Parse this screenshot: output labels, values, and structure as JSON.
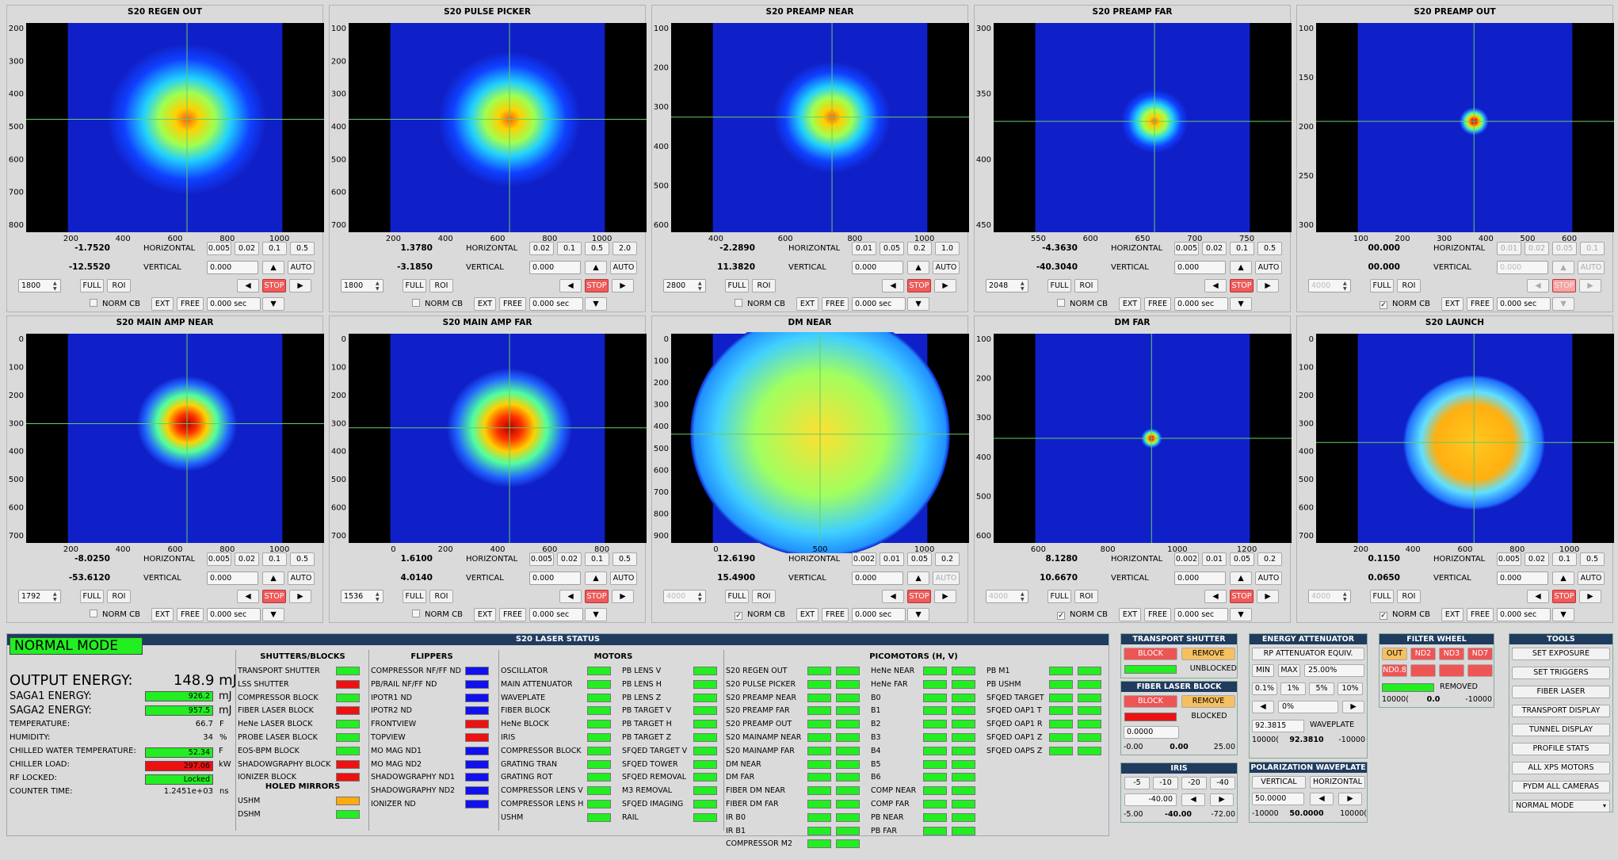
{
  "cameras": [
    {
      "title": "S20 REGEN OUT",
      "colormap": "jet",
      "yticks": [
        "200",
        "300",
        "400",
        "500",
        "600",
        "700",
        "800"
      ],
      "xticks": [
        "200",
        "400",
        "600",
        "800",
        "1000"
      ],
      "beam": {
        "cx": 0.54,
        "cy": 0.46,
        "r": 0.38,
        "peak": "yellow"
      },
      "h_value": "-1.7520",
      "v_value": "-12.5520",
      "h_label": "HORIZONTAL",
      "v_label": "VERTICAL",
      "h_steps": [
        "0.005",
        "0.02",
        "0.1",
        "0.5"
      ],
      "v_input": "0.000",
      "auto": "AUTO",
      "exposure": "1800",
      "full": "FULL",
      "roi": "ROI",
      "stop": "STOP",
      "norm_cb": "NORM CB",
      "norm_checked": false,
      "ext": "EXT",
      "free": "FREE",
      "time": "0.000 sec",
      "disabled": false
    },
    {
      "title": "S20 PULSE PICKER",
      "yticks": [
        "100",
        "200",
        "300",
        "400",
        "500",
        "600",
        "700"
      ],
      "xticks": [
        "200",
        "400",
        "600",
        "800",
        "1000"
      ],
      "beam": {
        "cx": 0.54,
        "cy": 0.46,
        "r": 0.34,
        "peak": "yellow"
      },
      "h_value": "1.3780",
      "v_value": "-3.1850",
      "h_label": "HORIZONTAL",
      "v_label": "VERTICAL",
      "h_steps": [
        "0.02",
        "0.1",
        "0.5",
        "2.0"
      ],
      "v_input": "0.000",
      "auto": "AUTO",
      "exposure": "1800",
      "full": "FULL",
      "roi": "ROI",
      "stop": "STOP",
      "norm_cb": "NORM CB",
      "norm_checked": false,
      "ext": "EXT",
      "free": "FREE",
      "time": "0.000 sec",
      "disabled": false
    },
    {
      "title": "S20 PREAMP NEAR",
      "yticks": [
        "100",
        "200",
        "300",
        "400",
        "500",
        "600"
      ],
      "xticks": [
        "400",
        "600",
        "800",
        "1000"
      ],
      "beam": {
        "cx": 0.54,
        "cy": 0.45,
        "r": 0.28,
        "peak": "yellow"
      },
      "h_value": "-2.2890",
      "v_value": "11.3820",
      "h_label": "HORIZONTAL",
      "v_label": "VERTICAL",
      "h_steps": [
        "0.01",
        "0.05",
        "0.2",
        "1.0"
      ],
      "v_input": "0.000",
      "auto": "AUTO",
      "exposure": "2800",
      "full": "FULL",
      "roi": "ROI",
      "stop": "STOP",
      "norm_cb": "NORM CB",
      "norm_checked": false,
      "ext": "EXT",
      "free": "FREE",
      "time": "0.000 sec",
      "disabled": false
    },
    {
      "title": "S20 PREAMP FAR",
      "yticks": [
        "300",
        "350",
        "400",
        "450"
      ],
      "xticks": [
        "550",
        "600",
        "650",
        "700",
        "750"
      ],
      "beam": {
        "cx": 0.54,
        "cy": 0.47,
        "r": 0.16,
        "peak": "yellow"
      },
      "h_value": "-4.3630",
      "v_value": "-40.3040",
      "h_label": "HORIZONTAL",
      "v_label": "VERTICAL",
      "h_steps": [
        "0.005",
        "0.02",
        "0.1",
        "0.5"
      ],
      "v_input": "0.000",
      "auto": "AUTO",
      "exposure": "2048",
      "full": "FULL",
      "roi": "ROI",
      "stop": "STOP",
      "norm_cb": "NORM CB",
      "norm_checked": false,
      "ext": "EXT",
      "free": "FREE",
      "time": "0.000 sec",
      "disabled": false
    },
    {
      "title": "S20 PREAMP OUT",
      "yticks": [
        "100",
        "150",
        "200",
        "250",
        "300"
      ],
      "xticks": [
        "100",
        "200",
        "300",
        "400",
        "500",
        "600"
      ],
      "beam": {
        "cx": 0.53,
        "cy": 0.47,
        "r": 0.07,
        "peak": "red"
      },
      "h_value": "00.000",
      "v_value": "00.000",
      "h_label": "HORIZONTAL",
      "v_label": "VERTICAL",
      "h_steps": [
        "0.01",
        "0.02",
        "0.05",
        "0.1"
      ],
      "v_input": "0.000",
      "auto": "AUTO",
      "exposure": "4000",
      "full": "FULL",
      "roi": "ROI",
      "stop": "STOP",
      "norm_cb": "NORM CB",
      "norm_checked": true,
      "ext": "EXT",
      "free": "FREE",
      "time": "0.000 sec",
      "disabled": true
    },
    {
      "title": "S20 MAIN AMP NEAR",
      "yticks": [
        "0",
        "100",
        "200",
        "300",
        "400",
        "500",
        "600",
        "700"
      ],
      "xticks": [
        "200",
        "400",
        "600",
        "800",
        "1000"
      ],
      "beam": {
        "cx": 0.54,
        "cy": 0.43,
        "r": 0.24,
        "peak": "red"
      },
      "h_value": "-8.0250",
      "v_value": "-53.6120",
      "h_label": "HORIZONTAL",
      "v_label": "VERTICAL",
      "h_steps": [
        "0.005",
        "0.02",
        "0.1",
        "0.5"
      ],
      "v_input": "0.000",
      "auto": "AUTO",
      "exposure": "1792",
      "full": "FULL",
      "roi": "ROI",
      "stop": "STOP",
      "norm_cb": "NORM CB",
      "norm_checked": false,
      "ext": "EXT",
      "free": "FREE",
      "time": "0.000 sec",
      "disabled": false
    },
    {
      "title": "S20 MAIN AMP FAR",
      "yticks": [
        "0",
        "100",
        "200",
        "300",
        "400",
        "500",
        "600",
        "700"
      ],
      "xticks": [
        "0",
        "200",
        "400",
        "600",
        "800"
      ],
      "beam": {
        "cx": 0.54,
        "cy": 0.45,
        "r": 0.3,
        "peak": "red"
      },
      "h_value": "1.6100",
      "v_value": "4.0140",
      "h_label": "HORIZONTAL",
      "v_label": "VERTICAL",
      "h_steps": [
        "0.005",
        "0.02",
        "0.1",
        "0.5"
      ],
      "v_input": "0.000",
      "auto": "AUTO",
      "exposure": "1536",
      "full": "FULL",
      "roi": "ROI",
      "stop": "STOP",
      "norm_cb": "NORM CB",
      "norm_checked": false,
      "ext": "EXT",
      "free": "FREE",
      "time": "0.000 sec",
      "disabled": false
    },
    {
      "title": "DM NEAR",
      "yticks": [
        "0",
        "100",
        "200",
        "300",
        "400",
        "500",
        "600",
        "700",
        "800",
        "900"
      ],
      "xticks": [
        "0",
        "500",
        "1000"
      ],
      "beam": {
        "cx": 0.5,
        "cy": 0.48,
        "r": 0.62,
        "peak": "flat"
      },
      "h_value": "12.6190",
      "v_value": "15.4900",
      "h_label": "HORIZONTAL",
      "v_label": "VERTICAL",
      "h_steps": [
        "0.002",
        "0.01",
        "0.05",
        "0.2"
      ],
      "v_input": "0.000",
      "auto": "AUTO",
      "exposure": "4000",
      "full": "FULL",
      "roi": "ROI",
      "stop": "STOP",
      "norm_cb": "NORM CB",
      "norm_checked": true,
      "ext": "EXT",
      "free": "FREE",
      "time": "0.000 sec",
      "disabled": false,
      "auto_disabled": true,
      "exposure_disabled": true
    },
    {
      "title": "DM FAR",
      "yticks": [
        "100",
        "200",
        "300",
        "400",
        "500",
        "600"
      ],
      "xticks": [
        "600",
        "800",
        "1000",
        "1200"
      ],
      "beam": {
        "cx": 0.53,
        "cy": 0.5,
        "r": 0.05,
        "peak": "red"
      },
      "h_value": "8.1280",
      "v_value": "10.6670",
      "h_label": "HORIZONTAL",
      "v_label": "VERTICAL",
      "h_steps": [
        "0.002",
        "0.01",
        "0.05",
        "0.2"
      ],
      "v_input": "0.000",
      "auto": "AUTO",
      "exposure": "4000",
      "full": "FULL",
      "roi": "ROI",
      "stop": "STOP",
      "norm_cb": "NORM CB",
      "norm_checked": true,
      "ext": "EXT",
      "free": "FREE",
      "time": "0.000 sec",
      "disabled": false,
      "exposure_disabled": true
    },
    {
      "title": "S20 LAUNCH",
      "yticks": [
        "0",
        "100",
        "200",
        "300",
        "400",
        "500",
        "600",
        "700"
      ],
      "xticks": [
        "200",
        "400",
        "600",
        "800",
        "1000"
      ],
      "beam": {
        "cx": 0.53,
        "cy": 0.52,
        "r": 0.34,
        "peak": "flat2"
      },
      "h_value": "0.1150",
      "v_value": "0.0650",
      "h_label": "HORIZONTAL",
      "v_label": "VERTICAL",
      "h_steps": [
        "0.005",
        "0.02",
        "0.1",
        "0.5"
      ],
      "v_input": "0.000",
      "auto": "AUTO",
      "exposure": "4000",
      "full": "FULL",
      "roi": "ROI",
      "stop": "STOP",
      "norm_cb": "NORM CB",
      "norm_checked": true,
      "ext": "EXT",
      "free": "FREE",
      "time": "0.000 sec",
      "disabled": false,
      "exposure_disabled": true
    }
  ],
  "status": {
    "header": "S20 LASER STATUS",
    "mode": "NORMAL MODE",
    "output_label": "OUTPUT ENERGY:",
    "output_value": "148.9 mJ",
    "saga1_label": "SAGA1 ENERGY:",
    "saga1_value": "926.2",
    "saga1_unit": "mJ",
    "saga2_label": "SAGA2 ENERGY:",
    "saga2_value": "957.5",
    "saga2_unit": "mJ",
    "temp_label": "TEMPERATURE:",
    "temp_value": "66.7",
    "temp_unit": "F",
    "hum_label": "HUMIDITY:",
    "hum_value": "34",
    "hum_unit": "%",
    "chw_label": "CHILLED WATER TEMPERATURE:",
    "chw_value": "52.34",
    "chw_unit": "F",
    "chl_label": "CHILLER LOAD:",
    "chl_value": "297.06",
    "chl_unit": "kW",
    "rf_label": "RF LOCKED:",
    "rf_value": "Locked",
    "ct_label": "COUNTER TIME:",
    "ct_value": "1.2451e+03",
    "ct_unit": "ns",
    "shutters_title": "SHUTTERS/BLOCKS",
    "shutters": [
      [
        "TRANSPORT SHUTTER",
        "green"
      ],
      [
        "LSS SHUTTER",
        "red"
      ],
      [
        "COMPRESSOR BLOCK",
        "green"
      ],
      [
        "FIBER LASER BLOCK",
        "red"
      ],
      [
        "HeNe LASER BLOCK",
        "green"
      ],
      [
        "PROBE LASER BLOCK",
        "green"
      ],
      [
        "EOS-BPM BLOCK",
        "green"
      ],
      [
        "SHADOWGRAPHY BLOCK",
        "red"
      ],
      [
        "IONIZER BLOCK",
        "red"
      ]
    ],
    "holed_title": "HOLED MIRRORS",
    "holed": [
      [
        "USHM",
        "orange"
      ],
      [
        "DSHM",
        "green"
      ]
    ],
    "flippers_title": "FLIPPERS",
    "flippers": [
      [
        "COMPRESSOR NF/FF ND",
        "blue"
      ],
      [
        "PB/RAIL NF/FF ND",
        "blue"
      ],
      [
        "IPOTR1 ND",
        "blue"
      ],
      [
        "IPOTR2 ND",
        "blue"
      ],
      [
        "FRONTVIEW",
        "red"
      ],
      [
        "TOPVIEW",
        "red"
      ],
      [
        "MO MAG ND1",
        "blue"
      ],
      [
        "MO MAG ND2",
        "blue"
      ],
      [
        "SHADOWGRAPHY ND1",
        "blue"
      ],
      [
        "SHADOWGRAPHY ND2",
        "blue"
      ],
      [
        "IONIZER ND",
        "blue"
      ]
    ],
    "motors_title": "MOTORS",
    "motors1": [
      [
        "OSCILLATOR",
        "green"
      ],
      [
        "MAIN ATTENUATOR",
        "green"
      ],
      [
        "WAVEPLATE",
        "green"
      ],
      [
        "FIBER BLOCK",
        "green"
      ],
      [
        "HeNe BLOCK",
        "green"
      ],
      [
        "IRIS",
        "green"
      ],
      [
        "COMPRESSOR BLOCK",
        "green"
      ],
      [
        "GRATING TRAN",
        "green"
      ],
      [
        "GRATING ROT",
        "green"
      ],
      [
        "COMPRESSOR LENS V",
        "green"
      ],
      [
        "COMPRESSOR LENS H",
        "green"
      ],
      [
        "USHM",
        "green"
      ]
    ],
    "motors2": [
      [
        "PB LENS V",
        "green"
      ],
      [
        "PB LENS H",
        "green"
      ],
      [
        "PB LENS Z",
        "green"
      ],
      [
        "PB TARGET V",
        "green"
      ],
      [
        "PB TARGET H",
        "green"
      ],
      [
        "PB TARGET Z",
        "green"
      ],
      [
        "SFQED TARGET V",
        "green"
      ],
      [
        "SFQED TOWER",
        "green"
      ],
      [
        "SFQED REMOVAL",
        "green"
      ],
      [
        "M3 REMOVAL",
        "green"
      ],
      [
        "SFQED IMAGING",
        "green"
      ],
      [
        "RAIL",
        "green"
      ]
    ],
    "pico_title": "PICOMOTORS (H, V)",
    "pico1": [
      "S20 REGEN OUT",
      "S20 PULSE PICKER",
      "S20 PREAMP NEAR",
      "S20 PREAMP FAR",
      "S20 PREAMP OUT",
      "S20 MAINAMP NEAR",
      "S20 MAINAMP FAR",
      "DM NEAR",
      "DM FAR",
      "FIBER DM NEAR",
      "FIBER DM FAR",
      "IR B0",
      "IR B1",
      "COMPRESSOR M2"
    ],
    "pico2": [
      "HeNe NEAR",
      "HeNe FAR",
      "B0",
      "B1",
      "B2",
      "B3",
      "B4",
      "B5",
      "B6",
      "COMP NEAR",
      "COMP FAR",
      "PB NEAR",
      "PB FAR"
    ],
    "pico3": [
      "PB M1",
      "PB USHM",
      "SFQED TARGET",
      "SFQED OAP1 T",
      "SFQED OAP1 R",
      "SFQED OAP1 Z",
      "SFQED OAPS Z"
    ]
  },
  "transport_shutter": {
    "title": "TRANSPORT SHUTTER",
    "block": "BLOCK",
    "remove": "REMOVE",
    "state": "UNBLOCKED"
  },
  "fiber_block": {
    "title": "FIBER LASER BLOCK",
    "block": "BLOCK",
    "remove": "REMOVE",
    "state": "BLOCKED",
    "input": "0.0000",
    "min": "-0.00",
    "cur": "0.00",
    "max": "25.00"
  },
  "iris": {
    "title": "IRIS",
    "steps": [
      "-5",
      "-10",
      "-20",
      "-40"
    ],
    "input": "-40.00",
    "min": "-5.00",
    "cur": "-40.00",
    "max": "-72.00"
  },
  "energy_att": {
    "title": "ENERGY ATTENUATOR",
    "label": "RP ATTENUATOR  EQUIV.",
    "min": "MIN",
    "max": "MAX",
    "pct": "25.00%",
    "steps": [
      "0.1%",
      "1%",
      "5%",
      "10%"
    ],
    "step_input": "0%",
    "wp_input": "92.3815",
    "wp_label": "WAVEPLATE",
    "lo": "10000(",
    "cur": "92.3810",
    "hi": "-10000"
  },
  "pol_wp": {
    "title": "POLARIZATION WAVEPLATE",
    "vertical": "VERTICAL",
    "horizontal": "HORIZONTAL",
    "input": "50.0000",
    "lo": "-10000",
    "cur": "50.0000",
    "hi": "10000("
  },
  "filter_wheel": {
    "title": "FILTER WHEEL",
    "buttons": [
      "OUT",
      "ND2",
      "ND3",
      "ND7"
    ],
    "row2": [
      "ND0.8",
      "",
      "",
      ""
    ],
    "state": "REMOVED",
    "lo": "10000(",
    "cur": "0.0",
    "hi": "-10000"
  },
  "tools": {
    "title": "TOOLS",
    "buttons": [
      "SET EXPOSURE",
      "SET TRIGGERS",
      "FIBER LASER",
      "TRANSPORT DISPLAY",
      "TUNNEL DISPLAY",
      "PROFILE STATS",
      "ALL XPS MOTORS",
      "PYDM ALL CAMERAS"
    ],
    "mode_select": "NORMAL MODE"
  }
}
